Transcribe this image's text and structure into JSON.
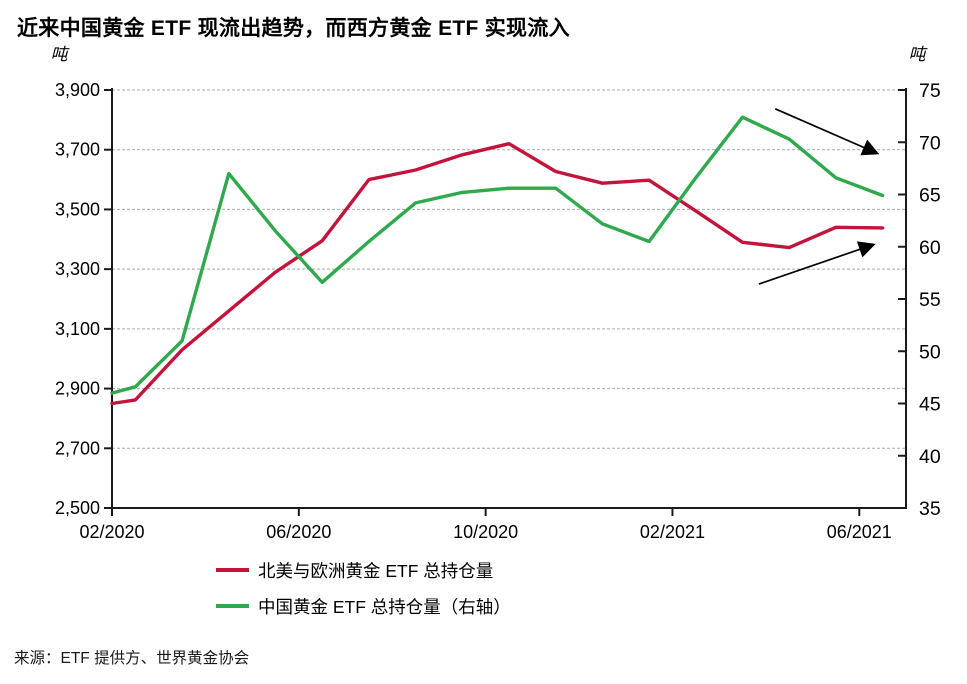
{
  "title": "近来中国黄金 ETF 现流出趋势，而西方黄金 ETF 实现流入",
  "source_note": "来源：ETF 提供方、世界黄金协会",
  "legend": [
    {
      "label": "北美与欧洲黄金 ETF 总持仓量",
      "color": "#C3143C"
    },
    {
      "label": "中国黄金 ETF 总持仓量（右轴）",
      "color": "#2FA84E"
    }
  ],
  "chart_data": {
    "type": "line",
    "x_axis": {
      "tick_labels": [
        "02/2020",
        "06/2020",
        "10/2020",
        "02/2021",
        "06/2021"
      ],
      "tick_month_positions": [
        0,
        4,
        8,
        12,
        16
      ],
      "months_span": 17
    },
    "left_axis": {
      "unit": "吨",
      "min": 2500,
      "max": 3900,
      "step": 200,
      "tick_labels": [
        "3,900",
        "3,700",
        "3,500",
        "3,300",
        "3,100",
        "2,900",
        "2,700",
        "2,500"
      ]
    },
    "right_axis": {
      "unit": "吨",
      "min": 35,
      "max": 75,
      "step": 5,
      "tick_labels": [
        "75",
        "70",
        "65",
        "60",
        "55",
        "50",
        "45",
        "40",
        "35"
      ]
    },
    "grid_values": [
      3900,
      3700,
      3500,
      3300,
      3100,
      2900,
      2700
    ],
    "series": [
      {
        "name": "北美与欧洲黄金 ETF 总持仓量",
        "axis": "left",
        "color": "#C3143C",
        "points": [
          [
            0,
            2850
          ],
          [
            0.5,
            2862
          ],
          [
            1.5,
            3030
          ],
          [
            2.5,
            3160
          ],
          [
            3.5,
            3290
          ],
          [
            4.5,
            3395
          ],
          [
            5.5,
            3600
          ],
          [
            6.5,
            3632
          ],
          [
            7.5,
            3683
          ],
          [
            8.5,
            3720
          ],
          [
            9.5,
            3627
          ],
          [
            10.5,
            3588
          ],
          [
            11.5,
            3598
          ],
          [
            12.5,
            3495
          ],
          [
            13.5,
            3390
          ],
          [
            14.5,
            3372
          ],
          [
            15.5,
            3440
          ],
          [
            16.5,
            3438
          ]
        ]
      },
      {
        "name": "中国黄金 ETF 总持仓量（右轴）",
        "axis": "right",
        "color": "#2FA84E",
        "points": [
          [
            0,
            46.0
          ],
          [
            0.5,
            46.6
          ],
          [
            1.5,
            51.0
          ],
          [
            2.5,
            67.0
          ],
          [
            3.5,
            61.5
          ],
          [
            4.5,
            56.6
          ],
          [
            5.5,
            60.5
          ],
          [
            6.5,
            64.2
          ],
          [
            7.5,
            65.2
          ],
          [
            8.5,
            65.6
          ],
          [
            9.5,
            65.6
          ],
          [
            10.5,
            62.2
          ],
          [
            11.5,
            60.5
          ],
          [
            12.5,
            66.6
          ],
          [
            13.5,
            72.4
          ],
          [
            14.5,
            70.3
          ],
          [
            15.5,
            66.6
          ],
          [
            16.5,
            64.9
          ]
        ]
      }
    ],
    "annotations": {
      "arrows": [
        {
          "axis": "right",
          "from": [
            14.2,
            73.2
          ],
          "to": [
            16.38,
            68.95
          ]
        },
        {
          "axis": "left",
          "from": [
            13.85,
            3250
          ],
          "to": [
            16.3,
            3382
          ]
        }
      ]
    },
    "colors": {
      "grid": "#A9A9A9",
      "axis": "#1A1A1A",
      "arrow": "#000000"
    }
  }
}
